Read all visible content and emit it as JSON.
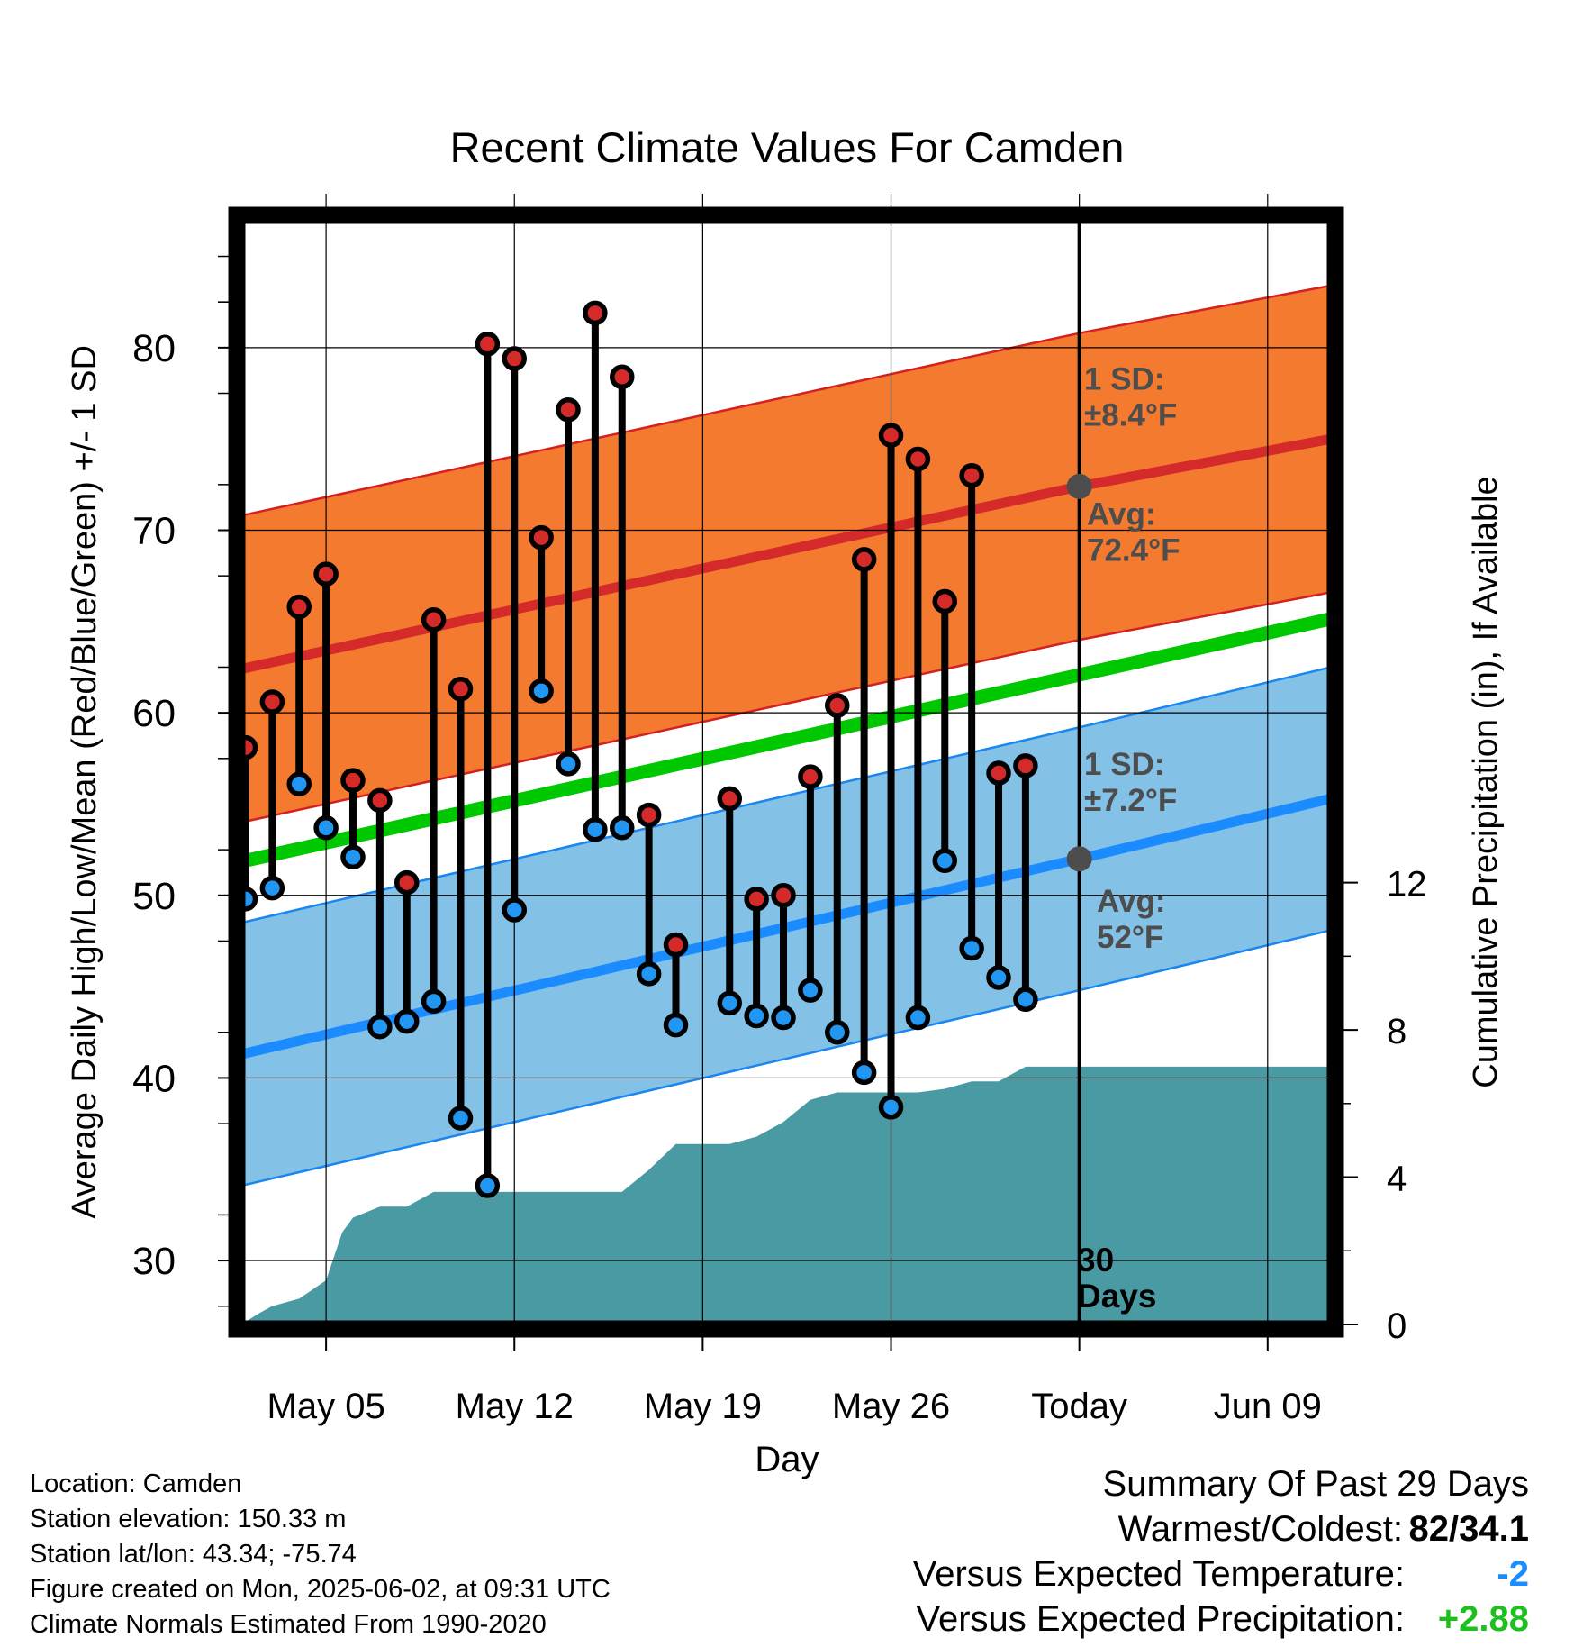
{
  "chart_data": {
    "type": "line",
    "title": "Recent Climate Values For Camden",
    "xlabel": "Day",
    "ylabel": "Average Daily High/Low/Mean (Red/Blue/Green) +/- 1 SD",
    "y2label": "Cumulative Precipitation (in), If Available",
    "x_tick_labels": [
      "May 05",
      "May 12",
      "May 19",
      "May 26",
      "Today",
      "Jun 09"
    ],
    "x_tick_days": [
      5,
      12,
      19,
      26,
      33,
      40
    ],
    "xlim": [
      1.85,
      42.35
    ],
    "ylim": [
      26.5,
      87
    ],
    "y_ticks": [
      30,
      40,
      50,
      60,
      70,
      80
    ],
    "y2lim": [
      0,
      30
    ],
    "y2_ticks": [
      0,
      4,
      8,
      12
    ],
    "today_day": 33,
    "days": [
      2,
      3,
      4,
      5,
      6,
      7,
      8,
      9,
      10,
      11,
      12,
      13,
      14,
      15,
      16,
      17,
      18,
      19,
      20,
      21,
      22,
      23,
      24,
      25,
      26,
      27,
      28,
      29,
      30,
      31,
      32
    ],
    "highs": [
      58.1,
      60.6,
      65.8,
      67.6,
      56.3,
      55.2,
      50.7,
      65.1,
      61.3,
      80.2,
      79.4,
      69.6,
      76.6,
      81.9,
      78.4,
      54.4,
      47.3,
      null,
      55.3,
      49.8,
      50.0,
      56.5,
      60.4,
      68.4,
      75.2,
      73.9,
      66.1,
      73.0,
      56.7,
      57.1,
      null
    ],
    "lows": [
      49.8,
      50.4,
      56.1,
      53.7,
      52.1,
      42.8,
      43.1,
      44.2,
      37.8,
      34.1,
      49.2,
      61.2,
      57.2,
      53.6,
      53.7,
      45.7,
      42.9,
      null,
      44.1,
      43.4,
      43.3,
      44.8,
      42.5,
      40.3,
      38.4,
      43.3,
      51.9,
      47.1,
      45.5,
      44.3,
      null
    ],
    "normal_high": {
      "start_day": 1.85,
      "start": 62.4,
      "today": 72.4,
      "end_day": 42.35,
      "end": 75.0
    },
    "normal_low": {
      "start_day": 1.85,
      "start": 41.3,
      "today": 52.0,
      "end_day": 42.35,
      "end": 55.3
    },
    "normal_mean": {
      "start_day": 1.85,
      "start": 51.85,
      "end_day": 42.35,
      "end": 65.15
    },
    "high_sd": 8.4,
    "low_sd": 7.2,
    "precip_cumulative": [
      [
        1.85,
        0.0
      ],
      [
        2.5,
        0.3
      ],
      [
        3,
        0.5
      ],
      [
        4,
        0.7
      ],
      [
        5,
        1.2
      ],
      [
        5.6,
        2.5
      ],
      [
        6,
        2.9
      ],
      [
        7,
        3.2
      ],
      [
        8,
        3.2
      ],
      [
        9,
        3.6
      ],
      [
        10,
        3.6
      ],
      [
        11,
        3.6
      ],
      [
        12,
        3.6
      ],
      [
        13,
        3.6
      ],
      [
        14,
        3.6
      ],
      [
        15,
        3.6
      ],
      [
        16,
        3.6
      ],
      [
        17,
        4.2
      ],
      [
        18,
        4.9
      ],
      [
        19,
        4.9
      ],
      [
        20,
        4.9
      ],
      [
        21,
        5.1
      ],
      [
        22,
        5.5
      ],
      [
        23,
        6.1
      ],
      [
        24,
        6.3
      ],
      [
        25,
        6.3
      ],
      [
        26,
        6.3
      ],
      [
        27,
        6.3
      ],
      [
        28,
        6.4
      ],
      [
        29,
        6.6
      ],
      [
        30,
        6.6
      ],
      [
        31,
        7.0
      ],
      [
        32,
        7.0
      ],
      [
        33,
        7.0
      ],
      [
        42.35,
        7.0
      ]
    ],
    "annotations": {
      "high_sd_label": [
        "1 SD:",
        "±8.4°F"
      ],
      "high_avg_label": [
        "Avg:",
        "72.4°F"
      ],
      "low_sd_label": [
        "1 SD:",
        "±7.2°F"
      ],
      "low_avg_label": [
        "Avg:",
        "52°F"
      ],
      "days_label": [
        "30",
        "Days"
      ]
    },
    "colors": {
      "high_band": "#f47a30",
      "high_band_edge": "#d42020",
      "high_line": "#d42a2a",
      "low_band": "#83c1e6",
      "low_band_edge": "#1a86f0",
      "low_line": "#1a8cff",
      "mean_line": "#00c800",
      "precip": "#4a9aa4",
      "high_dot": "#d42a2a",
      "low_dot": "#2196f3",
      "annotation": "#4d4d4d"
    },
    "grid": true
  },
  "footer": {
    "location": "Location: Camden",
    "elevation": "Station elevation: 150.33 m",
    "latlon": "Station lat/lon: 43.34; -75.74",
    "created": "Figure created on Mon, 2025-06-02, at 09:31 UTC",
    "normals": "Climate Normals Estimated From 1990-2020"
  },
  "summary": {
    "title": "Summary Of Past 29 Days",
    "warmest_label": "Warmest/Coldest:",
    "warmest_value": "82/34.1",
    "temp_label": "Versus Expected Temperature:",
    "temp_value": "-2",
    "temp_color": "#1a8cff",
    "precip_label": "Versus Expected Precipitation:",
    "precip_value": "+2.88",
    "precip_color": "#1fbf1f"
  }
}
